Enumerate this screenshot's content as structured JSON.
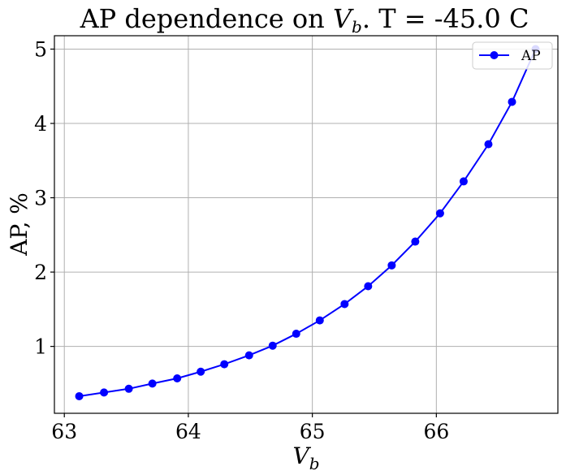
{
  "chart_data": {
    "type": "line",
    "title_text": "AP dependence on ",
    "title_var": "V",
    "title_sub": "b",
    "title_suffix": ". T = -45.0 C",
    "xlabel_var": "V",
    "xlabel_sub": "b",
    "ylabel": "AP, %",
    "xlim": [
      62.92,
      66.98
    ],
    "ylim": [
      0.1,
      5.18
    ],
    "xticks": [
      63,
      64,
      65,
      66
    ],
    "xtick_labels": [
      "63",
      "64",
      "65",
      "66"
    ],
    "yticks": [
      1,
      2,
      3,
      4,
      5
    ],
    "ytick_labels": [
      "1",
      "2",
      "3",
      "4",
      "5"
    ],
    "grid": true,
    "legend_position": "top-right",
    "series": [
      {
        "name": "AP",
        "color": "#0000ff",
        "marker": "circle",
        "x": [
          63.12,
          63.32,
          63.52,
          63.71,
          63.91,
          64.1,
          64.29,
          64.49,
          64.68,
          64.87,
          65.06,
          65.26,
          65.45,
          65.64,
          65.83,
          66.03,
          66.22,
          66.42,
          66.61,
          66.8
        ],
        "y": [
          0.33,
          0.38,
          0.43,
          0.5,
          0.57,
          0.66,
          0.76,
          0.88,
          1.01,
          1.17,
          1.35,
          1.57,
          1.81,
          2.09,
          2.41,
          2.79,
          3.22,
          3.72,
          4.29,
          5.0
        ]
      }
    ]
  }
}
